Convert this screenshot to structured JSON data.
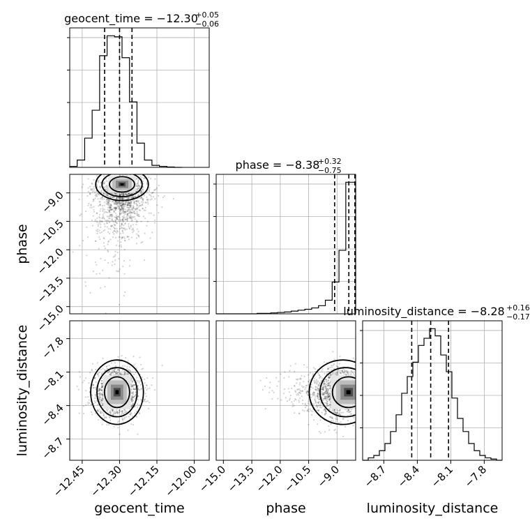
{
  "chart_data": {
    "type": "corner",
    "parameters": [
      "geocent_time",
      "phase",
      "luminosity_distance"
    ],
    "grid": true,
    "ranges": {
      "geocent_time": [
        -12.5,
        -11.94
      ],
      "phase": [
        -15.38,
        -8.02
      ],
      "luminosity_distance": [
        -8.89,
        -7.64
      ]
    },
    "ticks": {
      "geocent_time": [
        -12.45,
        -12.3,
        -12.15,
        -12.0
      ],
      "phase": [
        -15.0,
        -13.5,
        -12.0,
        -10.5,
        -9.0
      ],
      "luminosity_distance": [
        -8.7,
        -8.4,
        -8.1,
        -7.8
      ]
    },
    "tick_labels": {
      "geocent_time": [
        "−12.45",
        "−12.30",
        "−12.15",
        "−12.00"
      ],
      "phase": [
        "−15.0",
        "−13.5",
        "−12.0",
        "−10.5",
        "−9.0"
      ],
      "luminosity_distance": [
        "−8.7",
        "−8.4",
        "−8.1",
        "−7.8"
      ]
    },
    "titles": [
      {
        "parameter": "geocent_time",
        "main": "geocent_time = −12.30",
        "plus": "+0.05",
        "minus": "−0.06"
      },
      {
        "parameter": "phase",
        "main": "phase = −8.38",
        "plus": "+0.32",
        "minus": "−0.75"
      },
      {
        "parameter": "luminosity_distance",
        "main": "luminosity_distance = −8.28",
        "plus": "+0.16",
        "minus": "−0.17"
      }
    ],
    "histograms": {
      "geocent_time": {
        "edges": [
          -12.5,
          -12.47,
          -12.44,
          -12.41,
          -12.38,
          -12.35,
          -12.32,
          -12.29,
          -12.26,
          -12.23,
          -12.2,
          -12.17,
          -12.14,
          -12.11,
          -12.08,
          -12.05
        ],
        "counts": [
          3,
          22,
          88,
          172,
          336,
          396,
          393,
          330,
          197,
          73,
          22,
          6,
          3,
          1,
          0
        ],
        "quantiles": [
          -12.36,
          -12.3,
          -12.25
        ]
      },
      "phase": {
        "edges": [
          -15.38,
          -15.02,
          -14.66,
          -14.3,
          -13.94,
          -13.58,
          -13.22,
          -12.86,
          -12.5,
          -12.14,
          -11.78,
          -11.42,
          -11.06,
          -10.7,
          -10.34,
          -9.98,
          -9.62,
          -9.26,
          -8.9,
          -8.54,
          -8.18,
          -8.02
        ],
        "counts": [
          0,
          0,
          0,
          0,
          0,
          0,
          1,
          1,
          2,
          3,
          4,
          6,
          8,
          10,
          13,
          18,
          30,
          70,
          140,
          290,
          290
        ],
        "quantiles": [
          -9.13,
          -8.38,
          -8.06
        ]
      },
      "luminosity_distance": {
        "edges": [
          -8.89,
          -8.84,
          -8.79,
          -8.74,
          -8.69,
          -8.64,
          -8.59,
          -8.54,
          -8.49,
          -8.44,
          -8.39,
          -8.34,
          -8.29,
          -8.24,
          -8.19,
          -8.14,
          -8.09,
          -8.04,
          -7.99,
          -7.94,
          -7.89,
          -7.84,
          -7.79,
          -7.74,
          -7.69,
          -7.64
        ],
        "counts": [
          0,
          2,
          4,
          8,
          14,
          24,
          38,
          56,
          70,
          82,
          96,
          102,
          110,
          104,
          88,
          74,
          52,
          35,
          24,
          14,
          8,
          4,
          2,
          1,
          0
        ],
        "quantiles": [
          -8.45,
          -8.28,
          -8.12
        ]
      }
    },
    "pairs": [
      {
        "x": "geocent_time",
        "y": "phase",
        "center": [
          -12.29,
          -8.55
        ],
        "spread": [
          0.055,
          1.1
        ],
        "skew": "tail toward lower phase"
      },
      {
        "x": "geocent_time",
        "y": "luminosity_distance",
        "center": [
          -12.31,
          -8.28
        ],
        "spread": [
          0.05,
          0.11
        ],
        "skew": "none"
      },
      {
        "x": "phase",
        "y": "luminosity_distance",
        "center": [
          -8.4,
          -8.28
        ],
        "spread": [
          0.9,
          0.11
        ],
        "skew": "tail toward lower phase"
      }
    ],
    "contour_levels": [
      0.393,
      0.865,
      0.989
    ]
  }
}
